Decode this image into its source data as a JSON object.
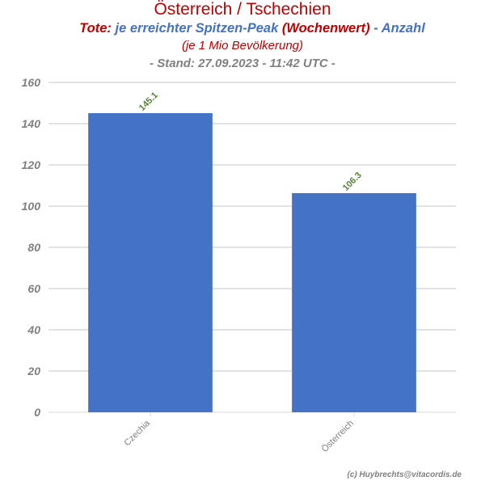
{
  "title": {
    "main": "Österreich / Tschechien",
    "line2_part1": "Tote: ",
    "line2_part2": "je erreichter Spitzen-Peak ",
    "line2_part3": "(Wochenwert)",
    "line2_part4": " - Anzahl",
    "line3": "(je 1 Mio Bevölkerung)",
    "line4": "- Stand: 27.09.2023 - 11:42 UTC -"
  },
  "credit": "(c) Huybrechts@vitacordis.de",
  "colors": {
    "title_red": "#c00000",
    "title_blue": "#4472c4",
    "grey_text": "#808080",
    "bar": "#4472c4",
    "data_label": "#548235",
    "gridline": "#d9d9d9"
  },
  "chart_data": {
    "type": "bar",
    "categories": [
      "Czechia",
      "Österreich"
    ],
    "values": [
      145.1,
      106.3
    ],
    "data_labels": [
      "145.1",
      "106.3"
    ],
    "ylim": [
      0,
      160
    ],
    "yticks": [
      0,
      20,
      40,
      60,
      80,
      100,
      120,
      140,
      160
    ],
    "grid": true,
    "xlabel": "",
    "ylabel": ""
  }
}
